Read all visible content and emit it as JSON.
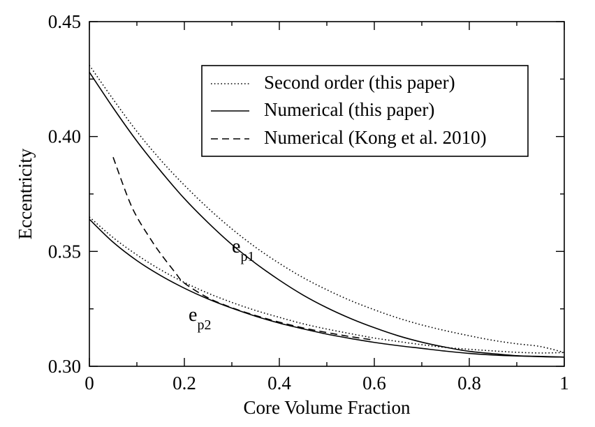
{
  "chart_data": {
    "type": "line",
    "title": "",
    "xlabel": "Core Volume Fraction",
    "ylabel": "Eccentricity",
    "xlim": [
      0,
      1
    ],
    "ylim": [
      0.3,
      0.45
    ],
    "xticks": [
      "0",
      "0.2",
      "0.4",
      "0.6",
      "0.8",
      "1"
    ],
    "yticks": [
      "0.30",
      "0.35",
      "0.40",
      "0.45"
    ],
    "grid": false,
    "legend_position": "top-right",
    "legend": [
      {
        "label": "Second order (this paper)",
        "style": "dotted"
      },
      {
        "label": "Numerical (this paper)",
        "style": "solid"
      },
      {
        "label": "Numerical (Kong et al. 2010)",
        "style": "dashed"
      }
    ],
    "annotations": [
      {
        "base": "e",
        "sub": "p1"
      },
      {
        "base": "e",
        "sub": "p2"
      }
    ],
    "series": [
      {
        "curve": "e_p1",
        "style": "dotted",
        "x": [
          0,
          0.05,
          0.1,
          0.15,
          0.2,
          0.25,
          0.3,
          0.35,
          0.4,
          0.45,
          0.5,
          0.55,
          0.6,
          0.65,
          0.7,
          0.75,
          0.8,
          0.85,
          0.9,
          0.95,
          1.0
        ],
        "y": [
          0.431,
          0.4162,
          0.4022,
          0.3898,
          0.3788,
          0.3688,
          0.3598,
          0.3518,
          0.3448,
          0.3386,
          0.3333,
          0.3286,
          0.3246,
          0.321,
          0.318,
          0.3155,
          0.3133,
          0.3113,
          0.3098,
          0.3086,
          0.306
        ]
      },
      {
        "curve": "e_p1",
        "style": "solid",
        "x": [
          0,
          0.05,
          0.1,
          0.15,
          0.2,
          0.25,
          0.3,
          0.35,
          0.4,
          0.45,
          0.5,
          0.55,
          0.6,
          0.65,
          0.7,
          0.75,
          0.8,
          0.85,
          0.9,
          0.95,
          1.0
        ],
        "y": [
          0.428,
          0.4125,
          0.398,
          0.385,
          0.373,
          0.3625,
          0.353,
          0.3448,
          0.3375,
          0.331,
          0.3255,
          0.3208,
          0.3168,
          0.3133,
          0.3105,
          0.3083,
          0.3065,
          0.3055,
          0.3046,
          0.3042,
          0.304
        ]
      },
      {
        "curve": "e_p2",
        "style": "dotted",
        "x": [
          0,
          0.05,
          0.1,
          0.15,
          0.2,
          0.25,
          0.3,
          0.35,
          0.4,
          0.45,
          0.5,
          0.55,
          0.6,
          0.65,
          0.7,
          0.75,
          0.8,
          0.85,
          0.9,
          0.95,
          1.0
        ],
        "y": [
          0.365,
          0.356,
          0.3485,
          0.342,
          0.3365,
          0.3318,
          0.3278,
          0.3243,
          0.3213,
          0.3185,
          0.3162,
          0.3142,
          0.3123,
          0.3108,
          0.3094,
          0.3082,
          0.3074,
          0.3067,
          0.3061,
          0.3058,
          0.306
        ]
      },
      {
        "curve": "e_p2",
        "style": "solid",
        "x": [
          0,
          0.05,
          0.1,
          0.15,
          0.2,
          0.25,
          0.3,
          0.35,
          0.4,
          0.45,
          0.5,
          0.55,
          0.6,
          0.65,
          0.7,
          0.75,
          0.8,
          0.85,
          0.9,
          0.95,
          1.0
        ],
        "y": [
          0.364,
          0.354,
          0.346,
          0.3395,
          0.334,
          0.3293,
          0.3253,
          0.3218,
          0.3188,
          0.3163,
          0.314,
          0.3121,
          0.3104,
          0.309,
          0.3078,
          0.3066,
          0.3056,
          0.3049,
          0.3045,
          0.3043,
          0.304
        ]
      },
      {
        "curve": "Kong",
        "style": "dashed",
        "x": [
          0.05,
          0.08,
          0.1,
          0.13,
          0.15,
          0.18,
          0.2,
          0.25,
          0.3,
          0.35,
          0.4,
          0.45,
          0.5,
          0.55,
          0.6
        ],
        "y": [
          0.391,
          0.374,
          0.365,
          0.355,
          0.349,
          0.341,
          0.3362,
          0.3298,
          0.3255,
          0.3221,
          0.3192,
          0.3167,
          0.3147,
          0.3129,
          0.3114
        ]
      }
    ]
  }
}
